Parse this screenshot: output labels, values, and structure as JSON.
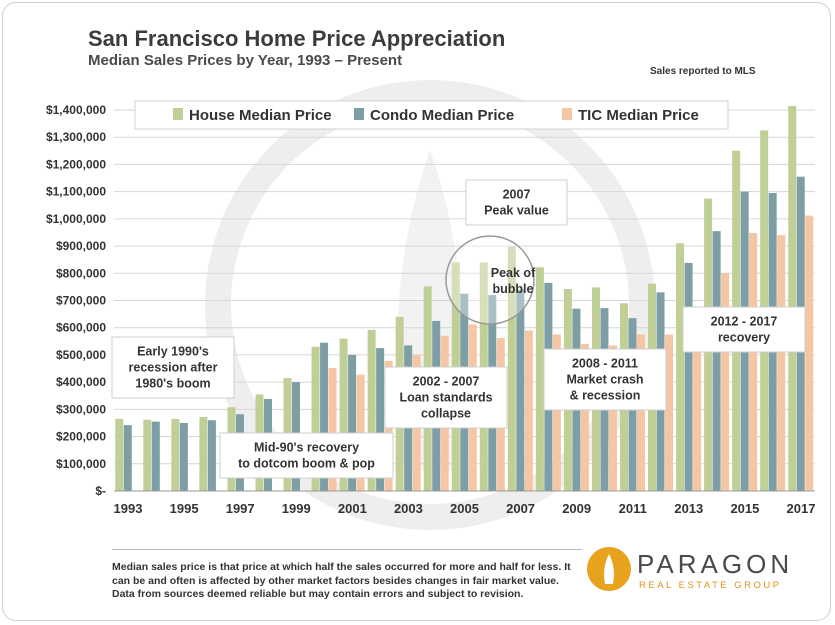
{
  "header": {
    "title": "San Francisco Home Price Appreciation",
    "subtitle": "Median Sales Prices by Year, 1993 – Present",
    "note": "Sales reported to MLS"
  },
  "chart_data": {
    "type": "bar",
    "title": "San Francisco Home Price Appreciation",
    "subtitle": "Median Sales Prices by Year, 1993 – Present",
    "xlabel": "",
    "ylabel": "",
    "ylim": [
      0,
      1400000
    ],
    "yticks": [
      0,
      100000,
      200000,
      300000,
      400000,
      500000,
      600000,
      700000,
      800000,
      900000,
      1000000,
      1100000,
      1200000,
      1300000,
      1400000
    ],
    "ytick_labels": [
      "$-",
      "$100,000",
      "$200,000",
      "$300,000",
      "$400,000",
      "$500,000",
      "$600,000",
      "$700,000",
      "$800,000",
      "$900,000",
      "$1,000,000",
      "$1,100,000",
      "$1,200,000",
      "$1,300,000",
      "$1,400,000"
    ],
    "categories": [
      "1993",
      "1994",
      "1995",
      "1996",
      "1997",
      "1998",
      "1999",
      "2000",
      "2001",
      "2002",
      "2003",
      "2004",
      "2005",
      "2006",
      "2007",
      "2008",
      "2009",
      "2010",
      "2011",
      "2012",
      "2013",
      "2014",
      "2015",
      "2016",
      "2017"
    ],
    "xtick_labels": [
      "1993",
      "",
      "1995",
      "",
      "1997",
      "",
      "1999",
      "",
      "2001",
      "",
      "2003",
      "",
      "2005",
      "",
      "2007",
      "",
      "2009",
      "",
      "2011",
      "",
      "2013",
      "",
      "2015",
      "",
      "2017"
    ],
    "grid": true,
    "legend_position": "top",
    "series": [
      {
        "name": "House Median Price",
        "color": "#bfcf96",
        "values": [
          265000,
          262000,
          265000,
          272000,
          308000,
          355000,
          415000,
          530000,
          560000,
          592000,
          640000,
          752000,
          840000,
          840000,
          898000,
          822000,
          742000,
          748000,
          690000,
          762000,
          910000,
          1075000,
          1250000,
          1325000,
          1415000
        ]
      },
      {
        "name": "Condo Median Price",
        "color": "#7d9ea5",
        "values": [
          242000,
          255000,
          250000,
          260000,
          282000,
          338000,
          400000,
          545000,
          500000,
          525000,
          535000,
          625000,
          725000,
          720000,
          740000,
          765000,
          670000,
          672000,
          635000,
          730000,
          838000,
          955000,
          1100000,
          1095000,
          1155000
        ]
      },
      {
        "name": "TIC Median Price",
        "color": "#f5c6a4",
        "values": [
          null,
          null,
          null,
          null,
          null,
          null,
          null,
          452000,
          428000,
          478000,
          500000,
          570000,
          612000,
          562000,
          590000,
          575000,
          540000,
          535000,
          575000,
          575000,
          665000,
          800000,
          948000,
          940000,
          1012000
        ]
      }
    ],
    "annotations": [
      {
        "id": "early90s",
        "lines": [
          "Early 1990's",
          "recession after",
          "1980's boom"
        ]
      },
      {
        "id": "mid90s",
        "lines": [
          "Mid-90's recovery",
          "to dotcom boom & pop"
        ]
      },
      {
        "id": "loan",
        "lines": [
          "2002 - 2007",
          "Loan standards",
          "collapse"
        ]
      },
      {
        "id": "peak2007",
        "lines": [
          "2007",
          "Peak value"
        ]
      },
      {
        "id": "bubble",
        "lines": [
          "Peak of",
          "bubble"
        ]
      },
      {
        "id": "crash",
        "lines": [
          "2008 - 2011",
          "Market crash",
          "& recession"
        ]
      },
      {
        "id": "recovery",
        "lines": [
          "2012 - 2017",
          "recovery"
        ]
      }
    ]
  },
  "footer": {
    "disclaimer": "Median sales price is that price at which half the sales occurred for more and half for less. It can be and often is affected by other market factors besides changes in fair market value. Data from sources deemed reliable but may contain errors and subject to revision."
  },
  "logo": {
    "name": "PARAGON",
    "tagline": "REAL ESTATE GROUP",
    "accent_color": "#e8a31e"
  }
}
